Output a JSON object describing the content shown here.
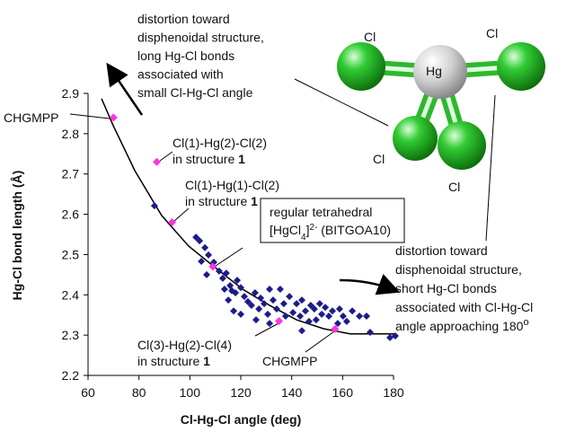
{
  "chart_data": {
    "type": "scatter",
    "xlabel": "Cl-Hg-Cl angle (deg)",
    "ylabel": "Hg-Cl bond length (Å)",
    "xlim": [
      60,
      180
    ],
    "xticks": [
      60,
      80,
      100,
      120,
      140,
      160,
      180
    ],
    "ylim": [
      2.2,
      2.9
    ],
    "yticks": [
      2.2,
      2.3,
      2.4,
      2.5,
      2.6,
      2.7,
      2.8,
      2.9
    ],
    "series": [
      {
        "mode": "markers",
        "color": "#1c1c8a",
        "x": [
          86.1,
          102.4,
          103.8,
          105.9,
          107.3,
          104.5,
          106.6,
          109.4,
          111.5,
          112.9,
          114.3,
          115.8,
          113.6,
          116.5,
          117.9,
          115.1,
          118.6,
          120.0,
          121.4,
          122.8,
          117.2,
          120.0,
          124.2,
          125.6,
          127.1,
          127.8,
          129.2,
          130.6,
          131.3,
          132.7,
          134.1,
          135.5,
          136.9,
          137.6,
          139.1,
          140.5,
          141.9,
          143.3,
          144.0,
          145.4,
          146.8,
          147.5,
          148.9,
          149.6,
          151.0,
          151.8,
          153.2,
          154.6,
          156.0,
          158.1,
          158.8,
          160.2,
          161.6,
          163.8,
          166.6,
          169.4,
          170.8,
          178.6,
          180.7,
          144.0,
          131.3,
          126.0
        ],
        "values": [
          2.621,
          2.543,
          2.534,
          2.517,
          2.499,
          2.483,
          2.45,
          2.481,
          2.459,
          2.441,
          2.454,
          2.423,
          2.414,
          2.41,
          2.405,
          2.387,
          2.436,
          2.418,
          2.396,
          2.383,
          2.36,
          2.352,
          2.374,
          2.405,
          2.365,
          2.392,
          2.378,
          2.352,
          2.414,
          2.387,
          2.365,
          2.414,
          2.378,
          2.347,
          2.396,
          2.356,
          2.378,
          2.347,
          2.387,
          2.36,
          2.334,
          2.374,
          2.365,
          2.338,
          2.378,
          2.352,
          2.369,
          2.347,
          2.36,
          2.329,
          2.365,
          2.347,
          2.334,
          2.36,
          2.347,
          2.347,
          2.307,
          2.294,
          2.298,
          2.311,
          2.329,
          2.338
        ]
      },
      {
        "mode": "markers",
        "color": "#ff33dd",
        "x": [
          70,
          87,
          93,
          109,
          135,
          157
        ],
        "values": [
          2.84,
          2.73,
          2.58,
          2.47,
          2.335,
          2.315
        ]
      },
      {
        "mode": "line",
        "color": "#000000",
        "x": [
          65.3,
          69.9,
          78.4,
          88.9,
          99.5,
          110.1,
          120.7,
          131.3,
          141.9,
          152.5,
          163.0,
          173.6,
          180.7
        ],
        "values": [
          2.887,
          2.82,
          2.708,
          2.597,
          2.521,
          2.467,
          2.414,
          2.374,
          2.338,
          2.316,
          2.303,
          2.303,
          2.303
        ]
      }
    ],
    "annotations": [
      {
        "lines": [
          "CHGMPP"
        ]
      },
      {
        "lines": [
          "Cl(1)-Hg(2)-Cl(2)",
          [
            "in structure ",
            {
              "b": "1"
            }
          ]
        ]
      },
      {
        "lines": [
          "Cl(1)-Hg(1)-Cl(2)",
          [
            "in structure ",
            {
              "b": "1"
            }
          ]
        ]
      },
      {
        "lines": [
          "regular tetrahedral",
          [
            "[HgCl",
            {
              "sub": "4"
            },
            "]",
            {
              "sup": "2-"
            },
            " (BITGOA10)"
          ]
        ]
      },
      {
        "lines": [
          "Cl(3)-Hg(2)-Cl(4)",
          [
            "in structure ",
            {
              "b": "1"
            }
          ]
        ]
      },
      {
        "lines": [
          "CHGMPP"
        ]
      },
      {
        "lines": [
          "distortion toward",
          "disphenoidal structure,",
          "long Hg-Cl bonds",
          "associated with",
          "small Cl-Hg-Cl angle"
        ]
      },
      {
        "lines": [
          "distortion toward",
          "disphenoidal structure,",
          "short Hg-Cl bonds",
          "associated with Cl-Hg-Cl",
          [
            "angle approaching 180",
            {
              "sup": "o"
            }
          ]
        ]
      }
    ]
  },
  "molecule": {
    "atoms": [
      "Cl",
      "Cl",
      "Hg",
      "Cl",
      "Cl"
    ]
  }
}
